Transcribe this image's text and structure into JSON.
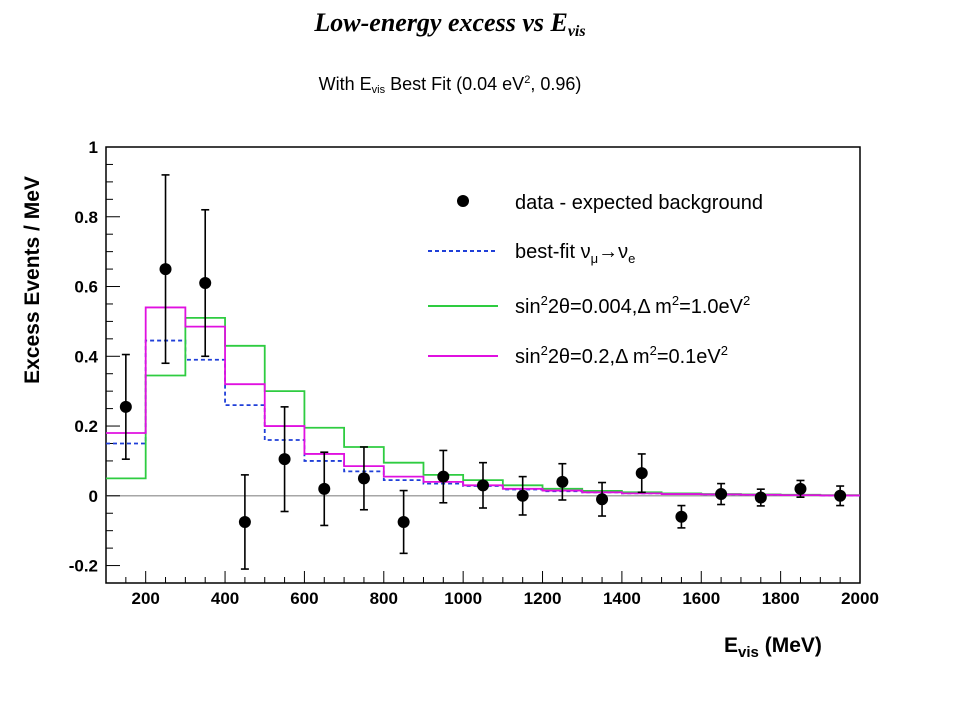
{
  "chart_data": {
    "type": "line",
    "title_main": "Low-energy excess vs E",
    "title_sub": "vis",
    "subtitle_prefix": "With E",
    "subtitle_sub": "vis",
    "subtitle_mid": " Best Fit (0.04 eV",
    "subtitle_sup": "2",
    "subtitle_end": ", 0.96)",
    "xlabel": "E",
    "xlabel_sub": "vis",
    "xlabel_unit": " (MeV)",
    "ylabel": "Excess Events / MeV",
    "xlim": [
      100,
      2000
    ],
    "ylim": [
      -0.25,
      1.0
    ],
    "x_ticks": [
      200,
      400,
      600,
      800,
      1000,
      1200,
      1400,
      1600,
      1800,
      2000
    ],
    "y_ticks": [
      -0.2,
      0,
      0.2,
      0.4,
      0.6,
      0.8,
      1
    ],
    "y_tick_labels": [
      "-0.2",
      "0",
      "0.2",
      "0.4",
      "0.6",
      "0.8",
      "1"
    ],
    "bin_edges": [
      100,
      200,
      300,
      400,
      500,
      600,
      700,
      800,
      900,
      1000,
      1100,
      1200,
      1300,
      1400,
      1500,
      1600,
      1700,
      1800,
      1900,
      2000
    ],
    "data": {
      "name": "data - expected background",
      "x": [
        150,
        250,
        350,
        450,
        550,
        650,
        750,
        850,
        950,
        1050,
        1150,
        1250,
        1350,
        1450,
        1550,
        1650,
        1750,
        1850,
        1950
      ],
      "y": [
        0.255,
        0.65,
        0.61,
        -0.075,
        0.105,
        0.02,
        0.05,
        -0.075,
        0.055,
        0.03,
        0.0,
        0.04,
        -0.01,
        0.065,
        -0.06,
        0.005,
        -0.005,
        0.02,
        0.0
      ],
      "err": [
        0.15,
        0.27,
        0.21,
        0.135,
        0.15,
        0.105,
        0.09,
        0.09,
        0.075,
        0.065,
        0.055,
        0.052,
        0.048,
        0.055,
        0.032,
        0.03,
        0.024,
        0.024,
        0.028
      ],
      "color": "#000000"
    },
    "series": [
      {
        "name": "best-fit ν",
        "name_sub1": "μ",
        "name_arrow": "→",
        "name_nu2": "ν",
        "name_sub2": "e",
        "style": "dashed",
        "color": "#1f3fd8",
        "values": [
          0.15,
          0.445,
          0.39,
          0.26,
          0.16,
          0.1,
          0.07,
          0.045,
          0.035,
          0.028,
          0.018,
          0.013,
          0.01,
          0.007,
          0.005,
          0.004,
          0.003,
          0.002,
          0.001
        ]
      },
      {
        "name": "sin",
        "name_sup1": "2",
        "name_mid": "2θ=0.004,Δ m",
        "name_sup2": "2",
        "name_end": "=1.0eV",
        "name_sup3": "2",
        "style": "solid",
        "color": "#2ecc40",
        "values": [
          0.05,
          0.345,
          0.51,
          0.43,
          0.3,
          0.195,
          0.14,
          0.095,
          0.06,
          0.045,
          0.03,
          0.02,
          0.014,
          0.01,
          0.007,
          0.005,
          0.004,
          0.003,
          0.002
        ]
      },
      {
        "name": "sin",
        "name_sup1": "2",
        "name_mid": "2θ=0.2,Δ m",
        "name_sup2": "2",
        "name_end": "=0.1eV",
        "name_sup3": "2",
        "style": "solid",
        "color": "#e010e0",
        "values": [
          0.18,
          0.54,
          0.485,
          0.32,
          0.2,
          0.12,
          0.085,
          0.055,
          0.04,
          0.03,
          0.02,
          0.015,
          0.01,
          0.007,
          0.005,
          0.004,
          0.003,
          0.002,
          0.001
        ]
      }
    ],
    "grid": false,
    "legend_position": "top-right"
  }
}
